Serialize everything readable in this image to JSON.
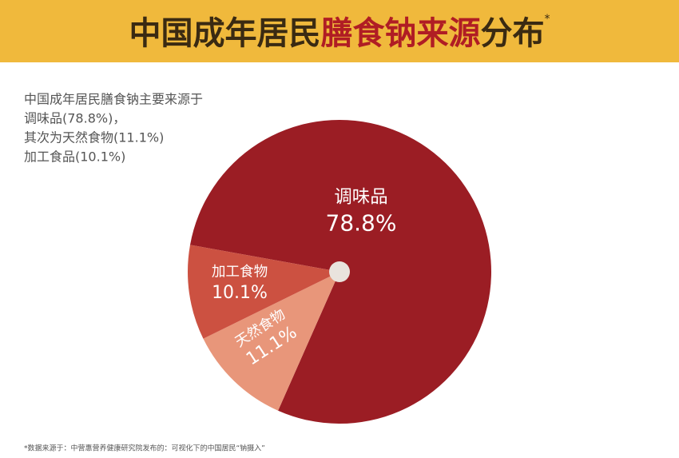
{
  "chart_data": {
    "type": "pie",
    "title_parts": {
      "prefix": "中国成年居民",
      "highlight": "膳食钠来源",
      "suffix": "分布",
      "mark": "*"
    },
    "description": [
      "中国成年居民膳食钠主要来源于",
      "调味品(78.8%)，",
      "其次为天然食物(11.1%)",
      "加工食品(10.1%)"
    ],
    "categories": [
      "调味品",
      "天然食物",
      "加工食物"
    ],
    "values": [
      78.8,
      11.1,
      10.1
    ],
    "value_labels": [
      "78.8%",
      "11.1%",
      "10.1%"
    ],
    "colors": [
      "#9b1d24",
      "#e8967a",
      "#cc5141"
    ],
    "footnote": "*数据来源于：中营惠营养健康研究院发布的：可视化下的中国居民“钠摄入”"
  }
}
